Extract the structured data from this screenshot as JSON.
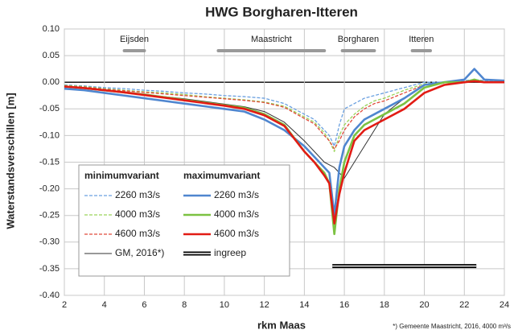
{
  "chart_data": {
    "type": "line",
    "title": "HWG Borgharen-Itteren",
    "x_label": "rkm Maas",
    "y_label": "Waterstandsverschillen [m]",
    "footnote": "*) Gemeente Maastricht, 2016, 4000 m³/s",
    "legend_titles": [
      "minimumvariant",
      "maximumvariant"
    ],
    "xlim": [
      2,
      24
    ],
    "xticks": [
      2,
      4,
      6,
      8,
      10,
      12,
      14,
      16,
      18,
      20,
      22,
      24
    ],
    "ylim": [
      -0.4,
      0.1
    ],
    "yticks": [
      {
        "value": 0.1,
        "label": "0.10"
      },
      {
        "value": 0.05,
        "label": "0.05"
      },
      {
        "value": 0,
        "label": "0.00"
      },
      {
        "value": -0.05,
        "label": "-0.05"
      },
      {
        "value": -0.1,
        "label": "-0.10"
      },
      {
        "value": -0.15,
        "label": "-0.15"
      },
      {
        "value": -0.2,
        "label": "-0.20"
      },
      {
        "value": -0.25,
        "label": "-0.25"
      },
      {
        "value": -0.3,
        "label": "-0.30"
      },
      {
        "value": -0.35,
        "label": "-0.35"
      },
      {
        "value": -0.4,
        "label": "-0.40"
      }
    ],
    "grid": true,
    "regions": [
      {
        "label": "Eijsden",
        "x": [
          5,
          6
        ]
      },
      {
        "label": "Maastricht",
        "x": [
          9.7,
          15
        ]
      },
      {
        "label": "Borgharen",
        "x": [
          15.9,
          17.5
        ]
      },
      {
        "label": "Itteren",
        "x": [
          19.4,
          20.3
        ]
      }
    ],
    "x": [
      2,
      3,
      4,
      5,
      6,
      7,
      8,
      9,
      10,
      11,
      12,
      13,
      14,
      14.5,
      15,
      15.25,
      15.5,
      15.75,
      16,
      16.5,
      17,
      17.5,
      18,
      19,
      20,
      21,
      22,
      22.5,
      23,
      24
    ],
    "series": [
      {
        "name": "2260 m3/s",
        "color": "#6aa0e0",
        "dash": true,
        "values": [
          -0.005,
          -0.007,
          -0.01,
          -0.012,
          -0.015,
          -0.017,
          -0.02,
          -0.022,
          -0.025,
          -0.027,
          -0.03,
          -0.04,
          -0.06,
          -0.07,
          -0.09,
          -0.1,
          -0.12,
          -0.08,
          -0.05,
          -0.04,
          -0.03,
          -0.025,
          -0.02,
          -0.01,
          0,
          0,
          0.003,
          0.005,
          0.003,
          0.002
        ]
      },
      {
        "name": "4000 m3/s",
        "color": "#9bd35a",
        "dash": true,
        "values": [
          -0.006,
          -0.008,
          -0.012,
          -0.015,
          -0.018,
          -0.02,
          -0.023,
          -0.027,
          -0.03,
          -0.033,
          -0.037,
          -0.045,
          -0.065,
          -0.075,
          -0.095,
          -0.11,
          -0.13,
          -0.1,
          -0.08,
          -0.06,
          -0.045,
          -0.035,
          -0.03,
          -0.015,
          -0.003,
          0,
          0,
          0.002,
          0,
          0
        ]
      },
      {
        "name": "4600 m3/s",
        "color": "#e04a3a",
        "dash": true,
        "values": [
          -0.007,
          -0.009,
          -0.013,
          -0.016,
          -0.019,
          -0.022,
          -0.025,
          -0.028,
          -0.031,
          -0.034,
          -0.038,
          -0.047,
          -0.068,
          -0.078,
          -0.1,
          -0.11,
          -0.125,
          -0.11,
          -0.09,
          -0.065,
          -0.05,
          -0.04,
          -0.035,
          -0.02,
          -0.005,
          0,
          0,
          0.001,
          0,
          0
        ]
      },
      {
        "name": "2260 m3/s",
        "color": "#4f86cf",
        "dash": false,
        "values": [
          -0.012,
          -0.015,
          -0.02,
          -0.025,
          -0.03,
          -0.035,
          -0.04,
          -0.045,
          -0.05,
          -0.055,
          -0.07,
          -0.09,
          -0.12,
          -0.14,
          -0.16,
          -0.17,
          -0.25,
          -0.16,
          -0.12,
          -0.09,
          -0.07,
          -0.06,
          -0.05,
          -0.03,
          -0.005,
          0,
          0.005,
          0.025,
          0.005,
          0.003
        ]
      },
      {
        "name": "4000 m3/s",
        "color": "#7cc242",
        "dash": false,
        "values": [
          -0.008,
          -0.011,
          -0.015,
          -0.019,
          -0.023,
          -0.028,
          -0.033,
          -0.038,
          -0.043,
          -0.048,
          -0.06,
          -0.08,
          -0.13,
          -0.15,
          -0.17,
          -0.19,
          -0.285,
          -0.2,
          -0.15,
          -0.1,
          -0.08,
          -0.07,
          -0.06,
          -0.04,
          -0.01,
          0,
          0,
          0.005,
          0,
          0
        ]
      },
      {
        "name": "4600 m3/s",
        "color": "#e21b14",
        "dash": false,
        "values": [
          -0.008,
          -0.011,
          -0.015,
          -0.019,
          -0.024,
          -0.029,
          -0.034,
          -0.039,
          -0.044,
          -0.05,
          -0.062,
          -0.082,
          -0.13,
          -0.15,
          -0.175,
          -0.19,
          -0.265,
          -0.21,
          -0.17,
          -0.11,
          -0.09,
          -0.08,
          -0.07,
          -0.05,
          -0.02,
          -0.005,
          0,
          0.002,
          0,
          0
        ]
      },
      {
        "name": "GM, 2016*)",
        "color": "#333333",
        "dash": false,
        "thin": true,
        "values": [
          -0.008,
          -0.011,
          -0.015,
          -0.019,
          -0.023,
          -0.027,
          -0.031,
          -0.036,
          -0.041,
          -0.046,
          -0.055,
          -0.075,
          -0.11,
          -0.13,
          -0.15,
          -0.155,
          -0.16,
          -0.17,
          -0.18,
          -0.15,
          -0.12,
          -0.09,
          -0.06,
          -0.03,
          -0.005,
          0,
          0,
          0,
          0,
          0
        ]
      },
      {
        "name": "ingreep",
        "color": "#000000",
        "double": true,
        "x": [
          15.4,
          22.6
        ],
        "values": [
          -0.345,
          -0.345
        ]
      }
    ]
  }
}
